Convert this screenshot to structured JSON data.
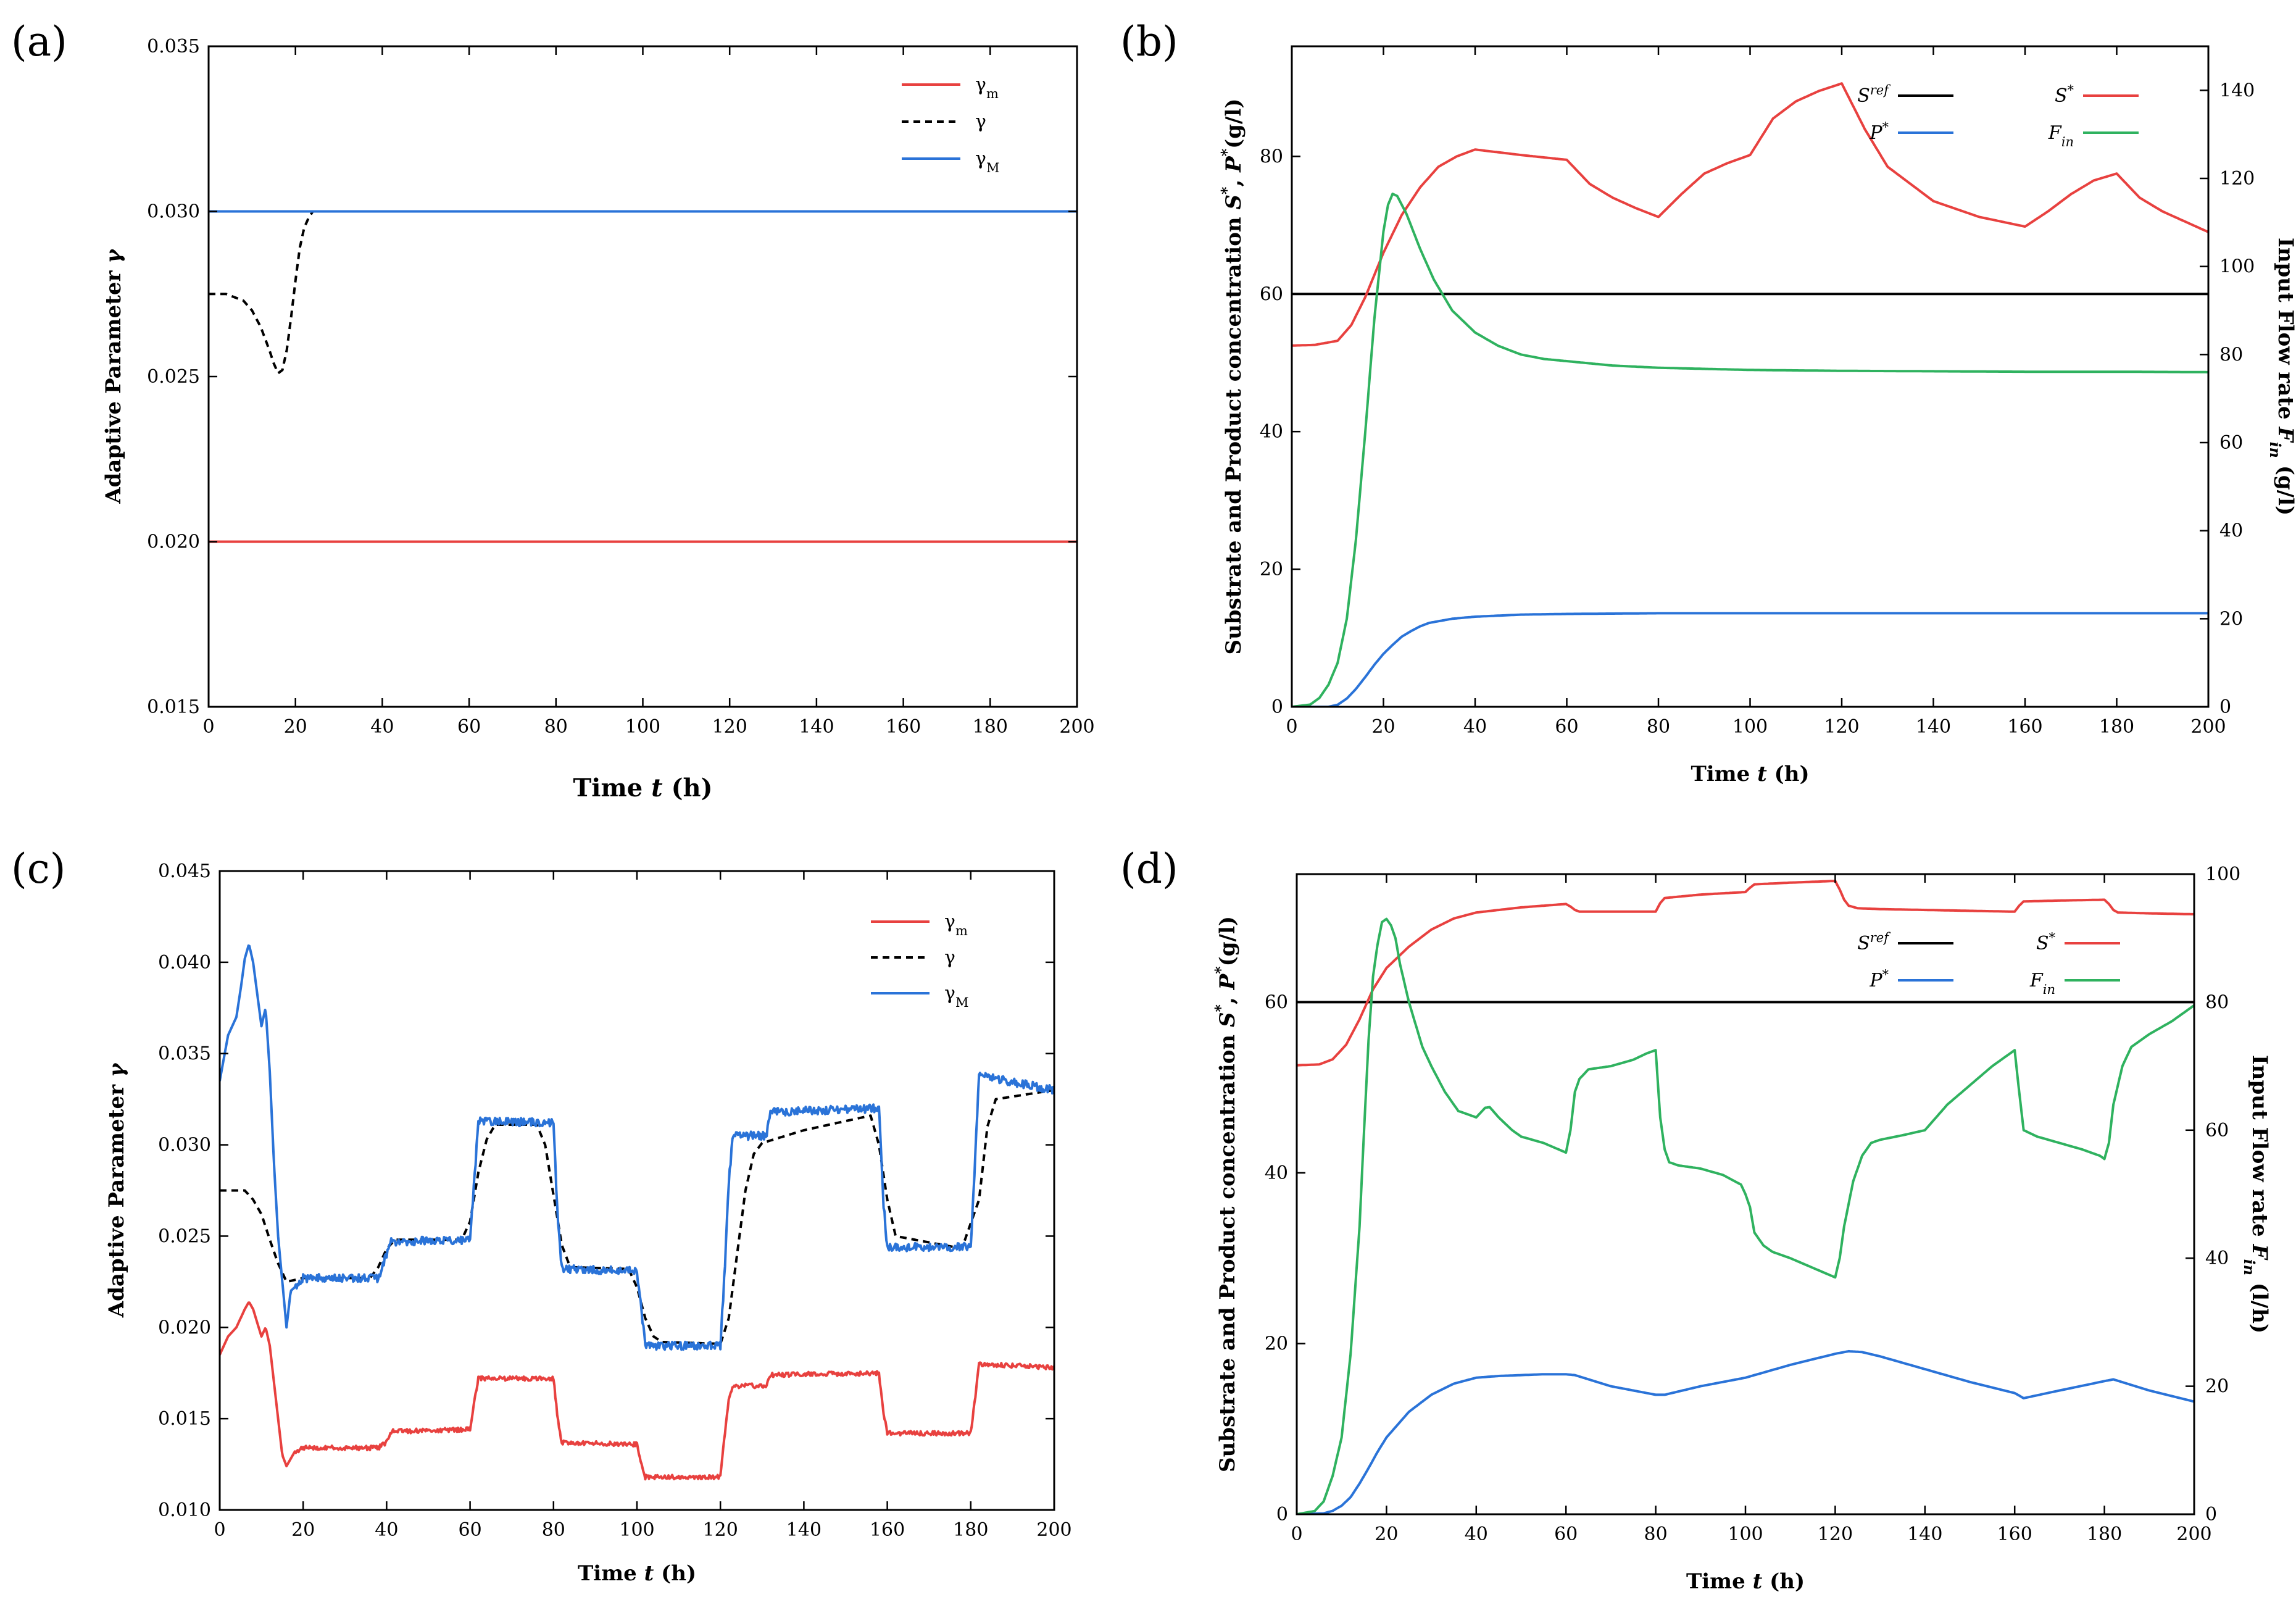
{
  "colors": {
    "red": "#e8413f",
    "blue": "#2a73d8",
    "green": "#2fb25f",
    "black": "#000000"
  },
  "chart_data": [
    {
      "type": "line",
      "panel_label": "(a)",
      "xlabel_parts": [
        "Time ",
        "t",
        " (h)"
      ],
      "ylabel_parts": [
        "Adaptive Parameter ",
        "γ"
      ],
      "xlim": [
        0,
        200
      ],
      "ylim": [
        0.015,
        0.035
      ],
      "xticks": [
        "0",
        "20",
        "40",
        "60",
        "80",
        "100",
        "120",
        "140",
        "160",
        "180",
        "200"
      ],
      "yticks": [
        "0.015",
        "0.020",
        "0.025",
        "0.030",
        "0.035"
      ],
      "legend": [
        "γm",
        "γ",
        "γM"
      ],
      "series": [
        {
          "name": "γm",
          "color": "red",
          "style": "solid",
          "x": [
            0,
            200
          ],
          "y": [
            0.02,
            0.02
          ]
        },
        {
          "name": "γ",
          "color": "black",
          "style": "dashed",
          "x": [
            0,
            4,
            8,
            10,
            12,
            14,
            15,
            16,
            17,
            18,
            19,
            20,
            21,
            22,
            23,
            24,
            26,
            30,
            60,
            100,
            140,
            200
          ],
          "y": [
            0.0275,
            0.0275,
            0.0273,
            0.027,
            0.0265,
            0.0258,
            0.0254,
            0.0251,
            0.0252,
            0.0258,
            0.0268,
            0.0279,
            0.0289,
            0.0295,
            0.0298,
            0.03,
            0.03,
            0.03,
            0.03,
            0.03,
            0.03,
            0.03
          ]
        },
        {
          "name": "γM",
          "color": "blue",
          "style": "solid",
          "x": [
            0,
            200
          ],
          "y": [
            0.03,
            0.03
          ]
        }
      ]
    },
    {
      "type": "line",
      "panel_label": "(b)",
      "xlabel_parts": [
        "Time ",
        "t",
        " (h)"
      ],
      "ylabel_parts": [
        "Substrate and Product concentration ",
        "S",
        "*",
        ", ",
        "P",
        "*",
        "(g/l)"
      ],
      "y2label_parts": [
        "Input Flow rate ",
        "F",
        "in",
        " (g/l)"
      ],
      "xlim": [
        0,
        200
      ],
      "ylim": [
        0,
        96
      ],
      "y2lim": [
        0,
        150
      ],
      "xticks": [
        "0",
        "20",
        "40",
        "60",
        "80",
        "100",
        "120",
        "140",
        "160",
        "180",
        "200"
      ],
      "yticks": [
        "0",
        "20",
        "40",
        "60",
        "80"
      ],
      "y2ticks": [
        "0",
        "20",
        "40",
        "60",
        "80",
        "100",
        "120",
        "140"
      ],
      "legend": [
        "Sref",
        "S*",
        "P*",
        "Fin"
      ],
      "series": [
        {
          "name": "Sref",
          "color": "black",
          "axis": "left",
          "x": [
            0,
            200
          ],
          "y": [
            60,
            60
          ]
        },
        {
          "name": "S*",
          "color": "red",
          "axis": "left",
          "x": [
            0,
            5,
            10,
            13,
            16,
            20,
            24,
            28,
            32,
            36,
            40,
            50,
            60,
            65,
            70,
            75,
            80,
            85,
            90,
            95,
            100,
            105,
            110,
            115,
            120,
            125,
            130,
            140,
            150,
            160,
            165,
            170,
            175,
            180,
            185,
            190,
            200
          ],
          "y": [
            52.5,
            52.6,
            53.2,
            55.5,
            59.5,
            66,
            71.5,
            75.5,
            78.5,
            80,
            81,
            80.2,
            79.5,
            76,
            74,
            72.5,
            71.2,
            74.5,
            77.5,
            79,
            80.2,
            85.5,
            88,
            89.5,
            90.6,
            84,
            78.5,
            73.5,
            71.2,
            69.8,
            72,
            74.5,
            76.5,
            77.5,
            74,
            72,
            69
          ]
        },
        {
          "name": "P*",
          "color": "blue",
          "axis": "left",
          "x": [
            0,
            8,
            10,
            12,
            14,
            16,
            18,
            20,
            22,
            24,
            26,
            28,
            30,
            35,
            40,
            50,
            60,
            80,
            100,
            150,
            200
          ],
          "y": [
            0,
            0,
            0.3,
            1.2,
            2.6,
            4.3,
            6.1,
            7.7,
            9,
            10.2,
            11,
            11.7,
            12.2,
            12.8,
            13.1,
            13.4,
            13.5,
            13.6,
            13.6,
            13.6,
            13.6
          ]
        },
        {
          "name": "Fin",
          "color": "green",
          "axis": "right",
          "x": [
            0,
            4,
            6,
            8,
            10,
            12,
            14,
            16,
            18,
            20,
            21,
            22,
            23,
            25,
            28,
            31,
            35,
            40,
            45,
            50,
            55,
            60,
            70,
            80,
            100,
            120,
            140,
            160,
            180,
            200
          ],
          "y": [
            0,
            0.5,
            2,
            5,
            10,
            20,
            38,
            62,
            88,
            108,
            114,
            116.5,
            116,
            112,
            104,
            97,
            90,
            85,
            82,
            80,
            79,
            78.5,
            77.5,
            77,
            76.5,
            76.3,
            76.2,
            76.1,
            76.1,
            76
          ]
        }
      ]
    },
    {
      "type": "line",
      "panel_label": "(c)",
      "xlabel_parts": [
        "Time ",
        "t",
        " (h)"
      ],
      "ylabel_parts": [
        "Adaptive Parameter ",
        "γ"
      ],
      "xlim": [
        0,
        200
      ],
      "ylim": [
        0.01,
        0.045
      ],
      "xticks": [
        "0",
        "20",
        "40",
        "60",
        "80",
        "100",
        "120",
        "140",
        "160",
        "180",
        "200"
      ],
      "yticks": [
        "0.010",
        "0.015",
        "0.020",
        "0.025",
        "0.030",
        "0.035",
        "0.040",
        "0.045"
      ],
      "legend": [
        "γm",
        "γ",
        "γM"
      ],
      "series": [
        {
          "name": "γm",
          "color": "red",
          "style": "solid",
          "noise": 0.00012,
          "x": [
            0,
            2,
            4,
            6,
            7,
            8,
            10,
            11,
            12,
            14,
            15,
            16,
            18,
            20,
            38,
            40,
            41,
            60,
            61,
            62,
            80,
            81,
            82,
            100,
            101,
            102,
            120,
            121,
            122,
            123,
            130,
            131,
            132,
            158,
            159,
            160,
            180,
            181,
            182,
            200
          ],
          "y": [
            0.0185,
            0.0195,
            0.02,
            0.021,
            0.0214,
            0.021,
            0.0195,
            0.02,
            0.019,
            0.015,
            0.013,
            0.0124,
            0.0132,
            0.0134,
            0.0134,
            0.0137,
            0.0143,
            0.0144,
            0.016,
            0.0172,
            0.0172,
            0.015,
            0.0137,
            0.0136,
            0.0125,
            0.0118,
            0.0118,
            0.014,
            0.016,
            0.0168,
            0.0168,
            0.0168,
            0.0174,
            0.0175,
            0.0155,
            0.0142,
            0.0142,
            0.016,
            0.018,
            0.0178
          ]
        },
        {
          "name": "γ",
          "color": "black",
          "style": "dashed",
          "noise": 0,
          "x": [
            0,
            6,
            8,
            10,
            12,
            14,
            16,
            20,
            36,
            38,
            40,
            42,
            58,
            60,
            62,
            64,
            66,
            76,
            78,
            82,
            84,
            98,
            100,
            102,
            104,
            106,
            120,
            122,
            124,
            126,
            128,
            130,
            140,
            156,
            158,
            160,
            162,
            176,
            178,
            182,
            184,
            186,
            200
          ],
          "y": [
            0.0275,
            0.0275,
            0.027,
            0.0262,
            0.0248,
            0.0235,
            0.0225,
            0.0227,
            0.0227,
            0.0233,
            0.0243,
            0.0248,
            0.0248,
            0.0258,
            0.0285,
            0.0303,
            0.0311,
            0.0311,
            0.03,
            0.0245,
            0.0233,
            0.0232,
            0.0222,
            0.0205,
            0.0195,
            0.0192,
            0.0191,
            0.0205,
            0.024,
            0.0275,
            0.0295,
            0.0301,
            0.0308,
            0.0316,
            0.03,
            0.027,
            0.025,
            0.0244,
            0.0244,
            0.027,
            0.031,
            0.0325,
            0.033
          ]
        },
        {
          "name": "γM",
          "color": "blue",
          "style": "solid",
          "noise": 0.00022,
          "x": [
            0,
            2,
            4,
            5,
            6,
            7,
            8,
            10,
            11,
            12,
            13,
            14,
            15,
            16,
            17,
            18,
            20,
            38,
            40,
            41,
            60,
            61,
            62,
            80,
            81,
            82,
            100,
            101,
            102,
            120,
            121,
            122,
            123,
            130,
            131,
            132,
            158,
            159,
            160,
            180,
            181,
            182,
            200
          ],
          "y": [
            0.0335,
            0.036,
            0.037,
            0.0385,
            0.0402,
            0.041,
            0.04,
            0.0365,
            0.0375,
            0.034,
            0.029,
            0.025,
            0.0225,
            0.02,
            0.022,
            0.0222,
            0.0227,
            0.0227,
            0.024,
            0.0247,
            0.0248,
            0.028,
            0.0313,
            0.0312,
            0.026,
            0.0232,
            0.0231,
            0.021,
            0.019,
            0.019,
            0.023,
            0.028,
            0.0305,
            0.0305,
            0.0305,
            0.0318,
            0.032,
            0.027,
            0.0244,
            0.0244,
            0.029,
            0.0338,
            0.033
          ]
        }
      ]
    },
    {
      "type": "line",
      "panel_label": "(d)",
      "xlabel_parts": [
        "Time ",
        "t",
        " (h)"
      ],
      "ylabel_parts": [
        "Substrate and Product concentration ",
        "S",
        "*",
        ", ",
        "P",
        "*",
        "(g/l)"
      ],
      "y2label_parts": [
        "Input Flow rate ",
        "F",
        "in",
        " (l/h)"
      ],
      "xlim": [
        0,
        200
      ],
      "ylim": [
        0,
        75
      ],
      "y2lim": [
        0,
        100
      ],
      "xticks": [
        "0",
        "20",
        "40",
        "60",
        "80",
        "100",
        "120",
        "140",
        "160",
        "180",
        "200"
      ],
      "yticks": [
        "0",
        "20",
        "40",
        "60"
      ],
      "y2ticks": [
        "0",
        "20",
        "40",
        "60",
        "80",
        "100"
      ],
      "legend": [
        "Sref",
        "S*",
        "P*",
        "Fin"
      ],
      "series": [
        {
          "name": "Sref",
          "color": "black",
          "axis": "left",
          "x": [
            0,
            200
          ],
          "y": [
            60,
            60
          ]
        },
        {
          "name": "S*",
          "color": "red",
          "axis": "left",
          "x": [
            0,
            5,
            8,
            11,
            14,
            17,
            20,
            25,
            30,
            35,
            40,
            45,
            50,
            55,
            60,
            61,
            62,
            63,
            70,
            78,
            80,
            81,
            82,
            90,
            100,
            101,
            102,
            110,
            120,
            121,
            122,
            123,
            125,
            130,
            140,
            160,
            161,
            162,
            170,
            180,
            181,
            182,
            183,
            190,
            200
          ],
          "y": [
            52.6,
            52.7,
            53.3,
            55,
            58,
            61.5,
            64,
            66.5,
            68.5,
            69.8,
            70.5,
            70.8,
            71.1,
            71.3,
            71.5,
            71.2,
            70.8,
            70.6,
            70.6,
            70.6,
            70.6,
            71.6,
            72.2,
            72.6,
            72.9,
            73.4,
            73.8,
            74,
            74.2,
            73.2,
            72,
            71.3,
            71,
            70.9,
            70.8,
            70.6,
            71.3,
            71.8,
            71.9,
            72,
            71.5,
            70.8,
            70.5,
            70.4,
            70.3
          ]
        },
        {
          "name": "P*",
          "color": "blue",
          "axis": "left",
          "x": [
            0,
            6,
            8,
            10,
            12,
            14,
            16,
            18,
            20,
            25,
            30,
            35,
            40,
            45,
            50,
            55,
            60,
            62,
            70,
            80,
            82,
            90,
            100,
            110,
            120,
            123,
            126,
            130,
            140,
            150,
            160,
            162,
            170,
            180,
            182,
            190,
            200
          ],
          "y": [
            0,
            0.1,
            0.4,
            1,
            2,
            3.6,
            5.4,
            7.3,
            9,
            12,
            14,
            15.3,
            16,
            16.2,
            16.3,
            16.4,
            16.4,
            16.3,
            15,
            14,
            14,
            15,
            16,
            17.5,
            18.8,
            19.1,
            19,
            18.5,
            17,
            15.5,
            14.2,
            13.6,
            14.5,
            15.6,
            15.8,
            14.5,
            13.2
          ]
        },
        {
          "name": "Fin",
          "color": "green",
          "axis": "right",
          "x": [
            0,
            4,
            6,
            8,
            10,
            12,
            14,
            15,
            16,
            17,
            18,
            19,
            20,
            21,
            22,
            23,
            25,
            28,
            30,
            33,
            36,
            40,
            42,
            43,
            45,
            48,
            50,
            55,
            60,
            61,
            62,
            63,
            65,
            70,
            75,
            78,
            80,
            81,
            82,
            83,
            85,
            90,
            95,
            99,
            100,
            101,
            102,
            104,
            106,
            110,
            115,
            120,
            121,
            122,
            124,
            126,
            128,
            130,
            135,
            140,
            145,
            150,
            155,
            159,
            160,
            161,
            162,
            165,
            170,
            175,
            179,
            180,
            181,
            182,
            184,
            186,
            190,
            195,
            200
          ],
          "y": [
            0,
            0.5,
            2,
            6,
            12,
            25,
            45,
            60,
            74,
            84,
            89,
            92.5,
            93,
            92,
            90,
            86,
            80,
            73,
            70,
            66,
            63,
            62,
            63.5,
            63.6,
            62,
            60,
            59,
            58,
            56.5,
            60,
            66,
            68,
            69.5,
            70,
            71,
            72,
            72.5,
            62,
            57,
            55,
            54.5,
            54,
            53,
            51.5,
            50,
            48,
            44,
            42,
            41,
            40,
            38.5,
            37,
            40,
            45,
            52,
            56,
            58,
            58.5,
            59.2,
            60,
            64,
            67,
            70,
            72,
            72.5,
            66,
            60,
            59,
            58,
            57,
            56,
            55.5,
            58,
            64,
            70,
            73,
            75,
            77,
            79.5
          ]
        }
      ]
    }
  ]
}
